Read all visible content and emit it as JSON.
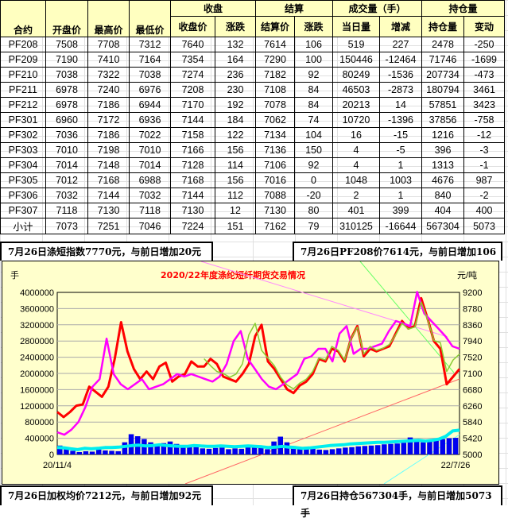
{
  "table": {
    "group_headers": [
      "收盘",
      "结算",
      "成交量（手）",
      "持仓量"
    ],
    "columns": [
      "合约",
      "开盘价",
      "最高价",
      "最低价",
      "收盘价",
      "涨跌",
      "结算价",
      "涨跌",
      "当日量",
      "增减",
      "持仓量",
      "变动"
    ],
    "rows": [
      [
        "PF208",
        "7508",
        "7708",
        "7312",
        "7640",
        "132",
        "7614",
        "106",
        "519",
        "227",
        "2478",
        "-250"
      ],
      [
        "PF209",
        "7190",
        "7410",
        "7164",
        "7354",
        "164",
        "7290",
        "100",
        "150446",
        "-12464",
        "71746",
        "-1699"
      ],
      [
        "PF210",
        "7038",
        "7322",
        "7038",
        "7274",
        "236",
        "7182",
        "92",
        "80249",
        "-1536",
        "207734",
        "-473"
      ],
      [
        "PF211",
        "6978",
        "7240",
        "6976",
        "7208",
        "230",
        "7108",
        "84",
        "46503",
        "-2873",
        "180794",
        "3461"
      ],
      [
        "PF212",
        "6978",
        "7186",
        "6944",
        "7170",
        "192",
        "7078",
        "84",
        "20213",
        "14",
        "57851",
        "3423"
      ],
      [
        "PF301",
        "6960",
        "7172",
        "6936",
        "7144",
        "184",
        "7062",
        "74",
        "10720",
        "-1396",
        "37856",
        "-758"
      ],
      [
        "PF302",
        "7036",
        "7186",
        "7022",
        "7158",
        "122",
        "7134",
        "104",
        "16",
        "-15",
        "1216",
        "-12"
      ],
      [
        "PF303",
        "7010",
        "7198",
        "7010",
        "7166",
        "156",
        "7136",
        "150",
        "4",
        "-5",
        "396",
        "-3"
      ],
      [
        "PF304",
        "7014",
        "7148",
        "7014",
        "7128",
        "114",
        "7106",
        "92",
        "4",
        "1",
        "1313",
        "-1"
      ],
      [
        "PF305",
        "7012",
        "7168",
        "6988",
        "7168",
        "156",
        "7016",
        "0",
        "1048",
        "1003",
        "4676",
        "987"
      ],
      [
        "PF306",
        "7032",
        "7144",
        "7032",
        "7144",
        "112",
        "7088",
        "-20",
        "2",
        "1",
        "840",
        "-2"
      ],
      [
        "PF307",
        "7118",
        "7130",
        "7118",
        "7130",
        "12",
        "7130",
        "80",
        "401",
        "399",
        "404",
        "400"
      ],
      [
        "小计",
        "7073",
        "7251",
        "7046",
        "7224",
        "151",
        "7162",
        "79",
        "310125",
        "-16644",
        "567304",
        "5073"
      ]
    ]
  },
  "notes": {
    "top_left": "7月26日涤短指数7770元，与前日增加20元",
    "top_right": "7月26日PF208价7614元，与前日增加106元",
    "bottom_left": "7月26日加权均价7212元，与前日增加92元",
    "bottom_right": "7月26日持仓567304手，与前日增加5073手"
  },
  "chart_data": {
    "type": "line",
    "title": "2020/22年度涤纶短纤期货交易情况",
    "ylabel_left": "手",
    "ylabel_right": "元/吨",
    "ylim_left": [
      0,
      4000000
    ],
    "ylim_right": [
      5000,
      9200
    ],
    "yticks_left": [
      "4000000",
      "3600000",
      "3200000",
      "2800000",
      "2400000",
      "2000000",
      "1600000",
      "1200000",
      "800000",
      "400000",
      "0"
    ],
    "yticks_right": [
      "9200",
      "8780",
      "8360",
      "7940",
      "7520",
      "7100",
      "6680",
      "6260",
      "5840",
      "5420",
      "5000"
    ],
    "xticks": [
      "20/11/4",
      "22/7/26"
    ],
    "grid": true,
    "colors": {
      "red": "#ff0000",
      "magenta": "#ff00ff",
      "green": "#88cc33",
      "volume": "#0000ee",
      "open_interest": "#00eeee",
      "title": "#ff0000",
      "plot_bg": "#ffffcc"
    },
    "series": [
      {
        "axis": "right",
        "color": "red",
        "values": [
          6101,
          5970,
          6101,
          6265,
          6297,
          6756,
          6625,
          6494,
          6756,
          7477,
          8427,
          7673,
          7215,
          6952,
          7149,
          6952,
          7280,
          7378,
          6887,
          7018,
          7084,
          7411,
          7280,
          7280,
          7477,
          7346,
          7018,
          6952,
          6887,
          7084,
          7346,
          8066,
          8361,
          7411,
          7215,
          6952,
          6690,
          6592,
          6789,
          6887,
          7084,
          7477,
          7411,
          7739,
          7673,
          7411,
          8001,
          8328,
          7542,
          7739,
          7673,
          7739,
          7804,
          8132,
          8459,
          8263,
          8328,
          9049,
          8525,
          7935,
          7739,
          6821,
          7018,
          7215
        ]
      },
      {
        "axis": "right",
        "color": "magenta",
        "values": [
          5577,
          5511,
          5642,
          5839,
          6232,
          6756,
          6952,
          8001,
          7084,
          6821,
          6690,
          6821,
          6952,
          6690,
          6756,
          6821,
          6952,
          7084,
          7018,
          7084,
          7018,
          6952,
          6887,
          7018,
          7346,
          7935,
          8197,
          7477,
          7215,
          6952,
          6756,
          6690,
          6821,
          6952,
          7084,
          7477,
          7542,
          7739,
          7739,
          7411,
          8132,
          8328,
          7608,
          7739,
          7739,
          7804,
          7870,
          8197,
          8459,
          8394,
          8328,
          9212,
          8656,
          8459,
          8263,
          8066,
          7804,
          7739
        ]
      },
      {
        "axis": "right",
        "color": "green",
        "values": [
          null,
          null,
          null,
          null,
          null,
          null,
          null,
          null,
          null,
          null,
          null,
          null,
          null,
          null,
          null,
          null,
          null,
          null,
          null,
          null,
          null,
          null,
          null,
          7480,
          7300,
          7150,
          7100,
          7000,
          7084,
          7346,
          8100,
          8400,
          7700,
          7500,
          7300,
          7000,
          6800,
          6700,
          6850,
          6950,
          7150,
          7500,
          7450,
          7800,
          7700,
          7450,
          8000,
          8300,
          7600,
          7800,
          7700,
          7750,
          7850,
          8100,
          8400,
          8250,
          8300,
          8950,
          8500,
          7950,
          7900,
          7150,
          7450,
          7600
        ]
      },
      {
        "axis": "left",
        "color": "volume",
        "type": "bar",
        "values": [
          220000,
          150000,
          90000,
          60000,
          80000,
          70000,
          120000,
          100000,
          90000,
          80000,
          300000,
          500000,
          450000,
          380000,
          300000,
          250000,
          280000,
          320000,
          260000,
          220000,
          200000,
          180000,
          150000,
          140000,
          160000,
          170000,
          130000,
          150000,
          140000,
          200000,
          170000,
          160000,
          130000,
          320000,
          440000,
          300000,
          200000,
          160000,
          150000,
          140000,
          120000,
          110000,
          130000,
          150000,
          170000,
          180000,
          200000,
          210000,
          220000,
          230000,
          250000,
          260000,
          270000,
          290000,
          420000,
          330000,
          300000,
          330000,
          350000,
          380000,
          400000,
          410000
        ]
      },
      {
        "axis": "left",
        "color": "open_interest",
        "values": [
          170000,
          165000,
          140000,
          120000,
          150000,
          140000,
          150000,
          170000,
          170000,
          180000,
          200000,
          220000,
          230000,
          210000,
          220000,
          240000,
          220000,
          210000,
          200000,
          200000,
          220000,
          210000,
          200000,
          200000,
          210000,
          200000,
          190000,
          200000,
          210000,
          200000,
          190000,
          170000,
          180000,
          200000,
          180000,
          170000,
          150000,
          160000,
          180000,
          200000,
          220000,
          230000,
          240000,
          260000,
          270000,
          280000,
          290000,
          300000,
          300000,
          310000,
          320000,
          330000,
          340000,
          350000,
          330000,
          350000,
          380000,
          450000,
          580000,
          600000
        ]
      }
    ]
  }
}
